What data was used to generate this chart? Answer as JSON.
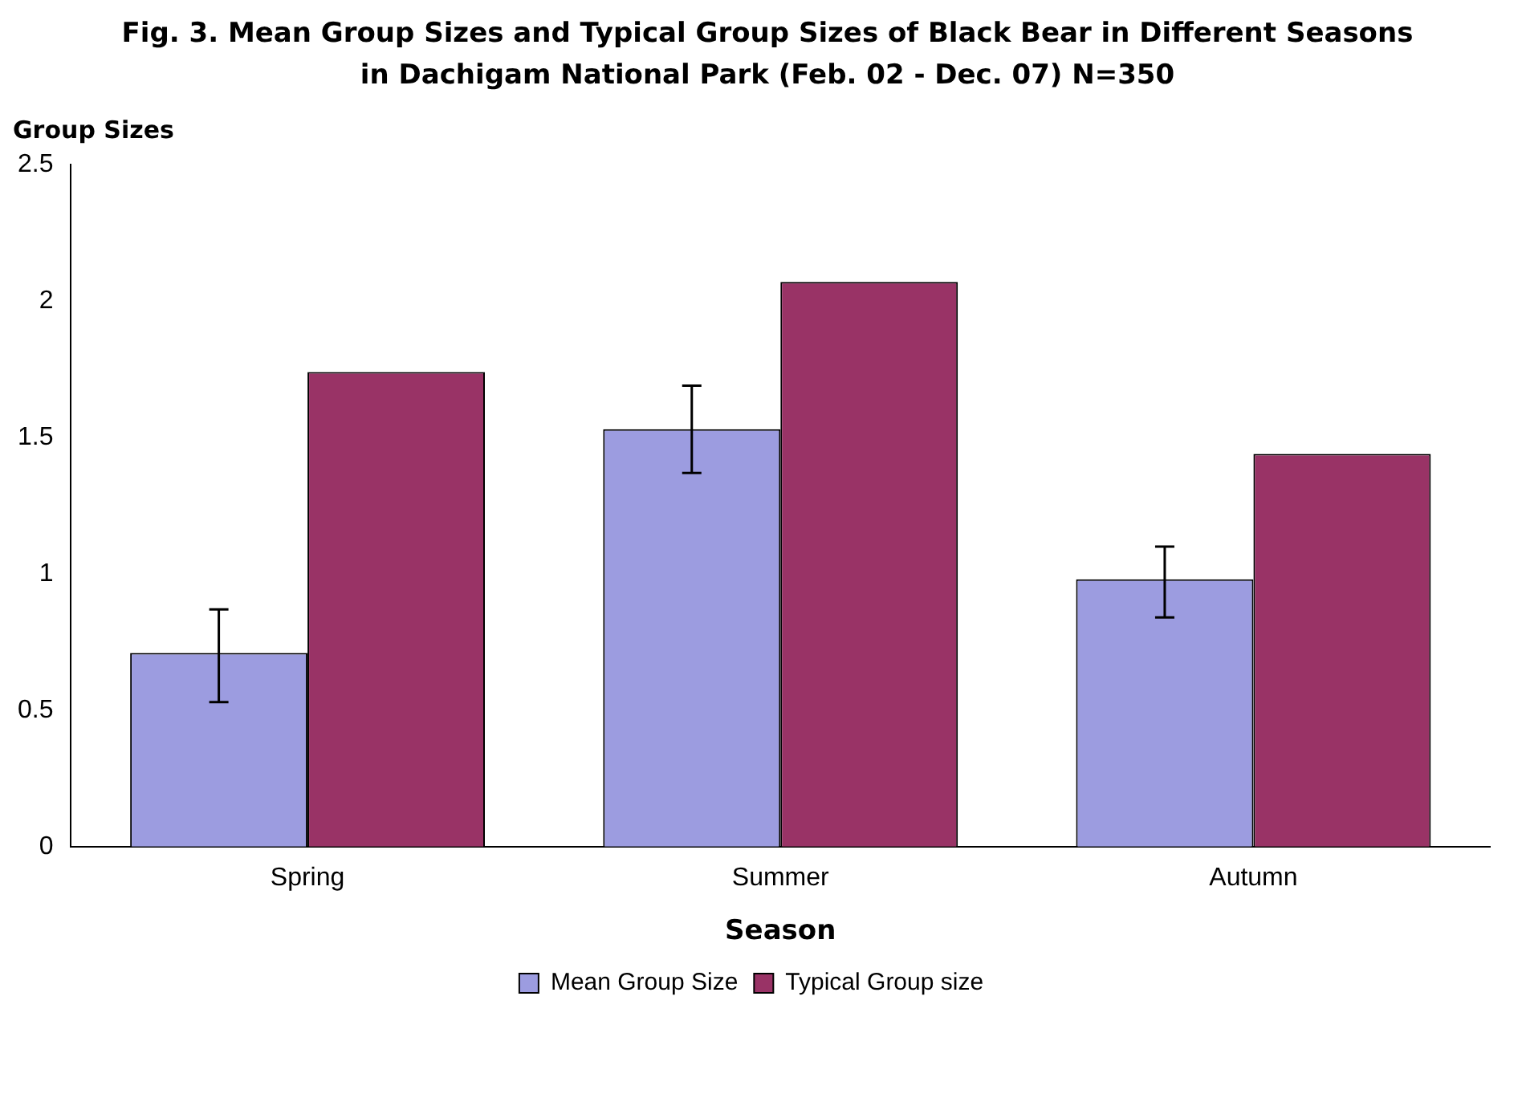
{
  "chart_data": {
    "type": "bar",
    "title": "Fig. 3. Mean Group Sizes and Typical Group Sizes of Black Bear in Different Seasons in Dachigam National Park (Feb. 02 - Dec. 07) N=350",
    "xlabel": "Season",
    "ylabel": "Group Sizes",
    "categories": [
      "Spring",
      "Summer",
      "Autumn"
    ],
    "series": [
      {
        "name": "Mean Group Size",
        "color": "#9c9ce0",
        "values": [
          0.71,
          1.53,
          0.98
        ],
        "errors": [
          [
            0.53,
            0.87
          ],
          [
            1.37,
            1.69
          ],
          [
            0.84,
            1.1
          ]
        ]
      },
      {
        "name": "Typical Group size",
        "color": "#993366",
        "values": [
          1.74,
          2.07,
          1.44
        ]
      }
    ],
    "ylim": [
      0,
      2.5
    ],
    "yticks": [
      0,
      0.5,
      1,
      1.5,
      2,
      2.5
    ],
    "grid": false,
    "legend": "bottom"
  }
}
